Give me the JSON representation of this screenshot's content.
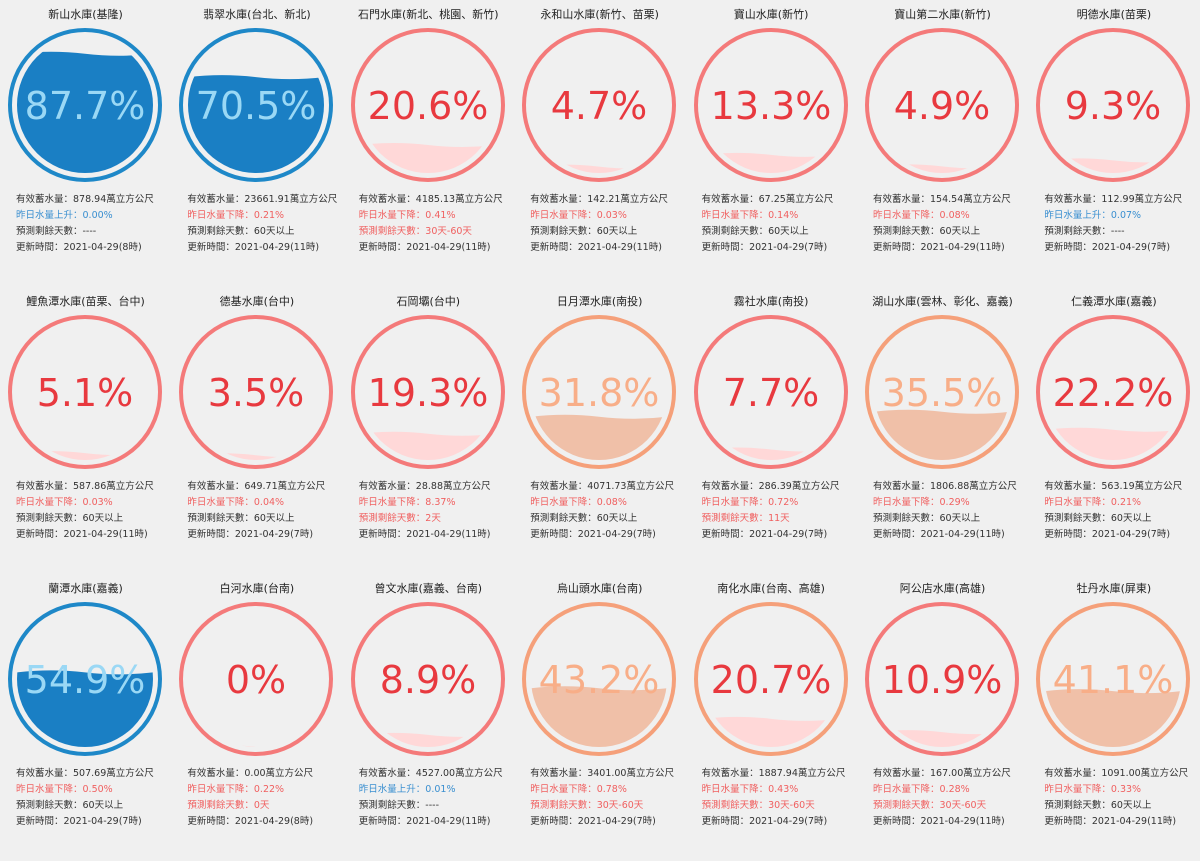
{
  "reservoirs": [
    {
      "name": "新山水庫(基隆)",
      "percent": 87.7,
      "percent_label": "87.7%",
      "storage": "有效蓄水量：878.94萬立方公尺",
      "change": "昨日水量上升：0.00%",
      "change_color": "#3a8fd0",
      "days": "預測剩餘天數：----",
      "days_color": "#333333",
      "updated": "更新時間：2021-04-29(8時)",
      "color": "#1e88c8",
      "fill_color": "#1a7fc4",
      "text_color": "#9ad8f5"
    },
    {
      "name": "翡翠水庫(台北、新北)",
      "percent": 70.5,
      "percent_label": "70.5%",
      "storage": "有效蓄水量：23661.91萬立方公尺",
      "change": "昨日水量下降：0.21%",
      "change_color": "#f06060",
      "days": "預測剩餘天數：60天以上",
      "days_color": "#333333",
      "updated": "更新時間：2021-04-29(11時)",
      "color": "#1e88c8",
      "fill_color": "#1a7fc4",
      "text_color": "#9ad8f5"
    },
    {
      "name": "石門水庫(新北、桃園、新竹)",
      "percent": 20.6,
      "percent_label": "20.6%",
      "storage": "有效蓄水量：4185.13萬立方公尺",
      "change": "昨日水量下降：0.41%",
      "change_color": "#f06060",
      "days": "預測剩餘天數：30天-60天",
      "days_color": "#f06060",
      "updated": "更新時間：2021-04-29(11時)",
      "color": "#f47a7a",
      "fill_color": "#ffd8d8",
      "text_color": "#e8393f"
    },
    {
      "name": "永和山水庫(新竹、苗栗)",
      "percent": 4.7,
      "percent_label": "4.7%",
      "storage": "有效蓄水量：142.21萬立方公尺",
      "change": "昨日水量下降：0.03%",
      "change_color": "#f06060",
      "days": "預測剩餘天數：60天以上",
      "days_color": "#333333",
      "updated": "更新時間：2021-04-29(11時)",
      "color": "#f47a7a",
      "fill_color": "#ffd8d8",
      "text_color": "#e8393f"
    },
    {
      "name": "寶山水庫(新竹)",
      "percent": 13.3,
      "percent_label": "13.3%",
      "storage": "有效蓄水量：67.25萬立方公尺",
      "change": "昨日水量下降：0.14%",
      "change_color": "#f06060",
      "days": "預測剩餘天數：60天以上",
      "days_color": "#333333",
      "updated": "更新時間：2021-04-29(7時)",
      "color": "#f47a7a",
      "fill_color": "#ffd8d8",
      "text_color": "#e8393f"
    },
    {
      "name": "寶山第二水庫(新竹)",
      "percent": 4.9,
      "percent_label": "4.9%",
      "storage": "有效蓄水量：154.54萬立方公尺",
      "change": "昨日水量下降：0.08%",
      "change_color": "#f06060",
      "days": "預測剩餘天數：60天以上",
      "days_color": "#333333",
      "updated": "更新時間：2021-04-29(11時)",
      "color": "#f47a7a",
      "fill_color": "#ffd8d8",
      "text_color": "#e8393f"
    },
    {
      "name": "明德水庫(苗栗)",
      "percent": 9.3,
      "percent_label": "9.3%",
      "storage": "有效蓄水量：112.99萬立方公尺",
      "change": "昨日水量上升：0.07%",
      "change_color": "#3a8fd0",
      "days": "預測剩餘天數：----",
      "days_color": "#333333",
      "updated": "更新時間：2021-04-29(7時)",
      "color": "#f47a7a",
      "fill_color": "#ffd8d8",
      "text_color": "#e8393f"
    },
    {
      "name": "鯉魚潭水庫(苗栗、台中)",
      "percent": 5.1,
      "percent_label": "5.1%",
      "storage": "有效蓄水量：587.86萬立方公尺",
      "change": "昨日水量下降：0.03%",
      "change_color": "#f06060",
      "days": "預測剩餘天數：60天以上",
      "days_color": "#333333",
      "updated": "更新時間：2021-04-29(11時)",
      "color": "#f47a7a",
      "fill_color": "#ffd8d8",
      "text_color": "#e8393f"
    },
    {
      "name": "德基水庫(台中)",
      "percent": 3.5,
      "percent_label": "3.5%",
      "storage": "有效蓄水量：649.71萬立方公尺",
      "change": "昨日水量下降：0.04%",
      "change_color": "#f06060",
      "days": "預測剩餘天數：60天以上",
      "days_color": "#333333",
      "updated": "更新時間：2021-04-29(7時)",
      "color": "#f47a7a",
      "fill_color": "#ffd8d8",
      "text_color": "#e8393f"
    },
    {
      "name": "石岡壩(台中)",
      "percent": 19.3,
      "percent_label": "19.3%",
      "storage": "有效蓄水量：28.88萬立方公尺",
      "change": "昨日水量下降：8.37%",
      "change_color": "#f06060",
      "days": "預測剩餘天數：2天",
      "days_color": "#f06060",
      "updated": "更新時間：2021-04-29(11時)",
      "color": "#f47a7a",
      "fill_color": "#ffd8d8",
      "text_color": "#e8393f"
    },
    {
      "name": "日月潭水庫(南投)",
      "percent": 31.8,
      "percent_label": "31.8%",
      "storage": "有效蓄水量：4071.73萬立方公尺",
      "change": "昨日水量下降：0.08%",
      "change_color": "#f06060",
      "days": "預測剩餘天數：60天以上",
      "days_color": "#333333",
      "updated": "更新時間：2021-04-29(7時)",
      "color": "#f5a07a",
      "fill_color": "#f0c0a8",
      "text_color": "#f8ae88"
    },
    {
      "name": "霧社水庫(南投)",
      "percent": 7.7,
      "percent_label": "7.7%",
      "storage": "有效蓄水量：286.39萬立方公尺",
      "change": "昨日水量下降：0.72%",
      "change_color": "#f06060",
      "days": "預測剩餘天數：11天",
      "days_color": "#f06060",
      "updated": "更新時間：2021-04-29(7時)",
      "color": "#f47a7a",
      "fill_color": "#ffd8d8",
      "text_color": "#e8393f"
    },
    {
      "name": "湖山水庫(雲林、彰化、嘉義)",
      "percent": 35.5,
      "percent_label": "35.5%",
      "storage": "有效蓄水量：1806.88萬立方公尺",
      "change": "昨日水量下降：0.29%",
      "change_color": "#f06060",
      "days": "預測剩餘天數：60天以上",
      "days_color": "#333333",
      "updated": "更新時間：2021-04-29(11時)",
      "color": "#f5a07a",
      "fill_color": "#f0c0a8",
      "text_color": "#f8ae88"
    },
    {
      "name": "仁義潭水庫(嘉義)",
      "percent": 22.2,
      "percent_label": "22.2%",
      "storage": "有效蓄水量：563.19萬立方公尺",
      "change": "昨日水量下降：0.21%",
      "change_color": "#f06060",
      "days": "預測剩餘天數：60天以上",
      "days_color": "#333333",
      "updated": "更新時間：2021-04-29(7時)",
      "color": "#f47a7a",
      "fill_color": "#ffd8d8",
      "text_color": "#e8393f"
    },
    {
      "name": "蘭潭水庫(嘉義)",
      "percent": 54.9,
      "percent_label": "54.9%",
      "storage": "有效蓄水量：507.69萬立方公尺",
      "change": "昨日水量下降：0.50%",
      "change_color": "#f06060",
      "days": "預測剩餘天數：60天以上",
      "days_color": "#333333",
      "updated": "更新時間：2021-04-29(7時)",
      "color": "#1e88c8",
      "fill_color": "#1a7fc4",
      "text_color": "#9ad8f5"
    },
    {
      "name": "白河水庫(台南)",
      "percent": 0,
      "percent_label": "0%",
      "storage": "有效蓄水量：0.00萬立方公尺",
      "change": "昨日水量下降：0.22%",
      "change_color": "#f06060",
      "days": "預測剩餘天數：0天",
      "days_color": "#f06060",
      "updated": "更新時間：2021-04-29(8時)",
      "color": "#f47a7a",
      "fill_color": "#ffd8d8",
      "text_color": "#e8393f"
    },
    {
      "name": "曾文水庫(嘉義、台南)",
      "percent": 8.9,
      "percent_label": "8.9%",
      "storage": "有效蓄水量：4527.00萬立方公尺",
      "change": "昨日水量上升：0.01%",
      "change_color": "#3a8fd0",
      "days": "預測剩餘天數：----",
      "days_color": "#333333",
      "updated": "更新時間：2021-04-29(11時)",
      "color": "#f47a7a",
      "fill_color": "#ffd8d8",
      "text_color": "#e8393f"
    },
    {
      "name": "烏山頭水庫(台南)",
      "percent": 43.2,
      "percent_label": "43.2%",
      "storage": "有效蓄水量：3401.00萬立方公尺",
      "change": "昨日水量下降：0.78%",
      "change_color": "#f06060",
      "days": "預測剩餘天數：30天-60天",
      "days_color": "#f06060",
      "updated": "更新時間：2021-04-29(7時)",
      "color": "#f5a07a",
      "fill_color": "#f0c0a8",
      "text_color": "#f8ae88"
    },
    {
      "name": "南化水庫(台南、高雄)",
      "percent": 20.7,
      "percent_label": "20.7%",
      "storage": "有效蓄水量：1887.94萬立方公尺",
      "change": "昨日水量下降：0.43%",
      "change_color": "#f06060",
      "days": "預測剩餘天數：30天-60天",
      "days_color": "#f06060",
      "updated": "更新時間：2021-04-29(7時)",
      "color": "#f5a07a",
      "fill_color": "#ffd8d8",
      "text_color": "#e8393f"
    },
    {
      "name": "阿公店水庫(高雄)",
      "percent": 10.9,
      "percent_label": "10.9%",
      "storage": "有效蓄水量：167.00萬立方公尺",
      "change": "昨日水量下降：0.28%",
      "change_color": "#f06060",
      "days": "預測剩餘天數：30天-60天",
      "days_color": "#f06060",
      "updated": "更新時間：2021-04-29(11時)",
      "color": "#f47a7a",
      "fill_color": "#ffd8d8",
      "text_color": "#e8393f"
    },
    {
      "name": "牡丹水庫(屏東)",
      "percent": 41.1,
      "percent_label": "41.1%",
      "storage": "有效蓄水量：1091.00萬立方公尺",
      "change": "昨日水量下降：0.33%",
      "change_color": "#f06060",
      "days": "預測剩餘天數：60天以上",
      "days_color": "#333333",
      "updated": "更新時間：2021-04-29(11時)",
      "color": "#f5a07a",
      "fill_color": "#f0c0a8",
      "text_color": "#f8ae88"
    }
  ]
}
